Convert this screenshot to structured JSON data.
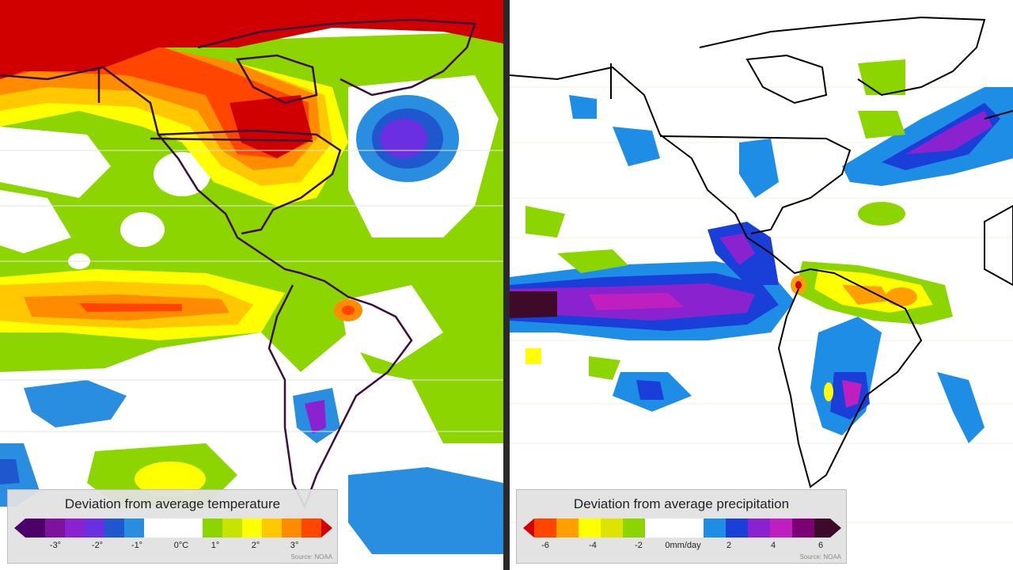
{
  "temperature_panel": {
    "legend_title": "Deviation from average temperature",
    "ticks": [
      "-3°",
      "-2°",
      "-1°",
      "0°C",
      "1°",
      "2°",
      "3°"
    ],
    "source": "Source: NOAA",
    "colors": [
      "#4b0069",
      "#7d129c",
      "#8a22cf",
      "#6a2fe0",
      "#1f57cf",
      "#2a8ee0",
      "#ffffff",
      "#8dd500",
      "#c7e400",
      "#ffff00",
      "#ffc800",
      "#ff8c00",
      "#ff4500",
      "#d10000"
    ]
  },
  "precipitation_panel": {
    "legend_title": "Deviation from average precipitation",
    "ticks": [
      "-6",
      "-4",
      "-2",
      "0mm/day",
      "2",
      "4",
      "6"
    ],
    "source": "Source: NOAA",
    "colors": [
      "#d10000",
      "#ff4500",
      "#ffa000",
      "#ffff00",
      "#dde400",
      "#8dd500",
      "#ffffff",
      "#1e8de6",
      "#1a3fd9",
      "#8a22cf",
      "#c01fc0",
      "#7a0074",
      "#3d0a2a"
    ]
  }
}
